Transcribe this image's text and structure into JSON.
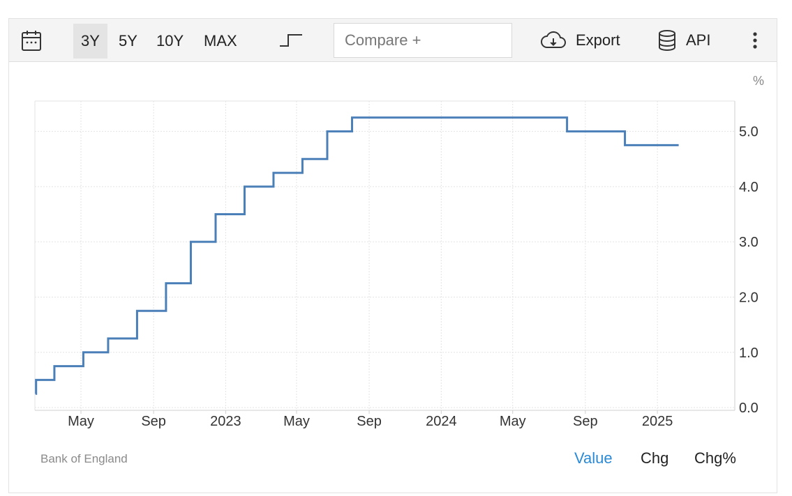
{
  "toolbar": {
    "calendar_icon": "calendar-icon",
    "ranges": [
      {
        "label": "3Y",
        "active": true
      },
      {
        "label": "5Y",
        "active": false
      },
      {
        "label": "10Y",
        "active": false
      },
      {
        "label": "MAX",
        "active": false
      }
    ],
    "chart_type_icon": "step-line-icon",
    "compare_placeholder": "Compare +",
    "export_label": "Export",
    "export_icon": "cloud-download-icon",
    "api_label": "API",
    "api_icon": "database-icon",
    "more_icon": "kebab-menu-icon"
  },
  "footer": {
    "source": "Bank of England",
    "tabs": [
      {
        "label": "Value",
        "active": true
      },
      {
        "label": "Chg",
        "active": false
      },
      {
        "label": "Chg%",
        "active": false
      }
    ]
  },
  "colors": {
    "line": "#4a7fb8",
    "grid": "#e3e3e3",
    "axis": "#cfcfcf",
    "tab_active": "#2b8ad6"
  },
  "chart_data": {
    "type": "line",
    "step": true,
    "ylabel": "%",
    "ylim": [
      -0.05,
      5.55
    ],
    "xlim": [
      "2022-02-12",
      "2025-05-12"
    ],
    "y_ticks": [
      "0.0",
      "1.0",
      "2.0",
      "3.0",
      "4.0",
      "5.0"
    ],
    "x_ticks": [
      {
        "date": "2022-05-01",
        "label": "May"
      },
      {
        "date": "2022-09-01",
        "label": "Sep"
      },
      {
        "date": "2023-01-01",
        "label": "2023"
      },
      {
        "date": "2023-05-01",
        "label": "May"
      },
      {
        "date": "2023-09-01",
        "label": "Sep"
      },
      {
        "date": "2024-01-01",
        "label": "2024"
      },
      {
        "date": "2024-05-01",
        "label": "May"
      },
      {
        "date": "2024-09-01",
        "label": "Sep"
      },
      {
        "date": "2025-01-01",
        "label": "2025"
      }
    ],
    "grid": true,
    "series": [
      {
        "x": [
          "2022-02-13",
          "2022-02-14",
          "2022-03-17",
          "2022-05-05",
          "2022-06-16",
          "2022-08-04",
          "2022-09-22",
          "2022-11-03",
          "2022-12-15",
          "2023-02-02",
          "2023-03-23",
          "2023-05-11",
          "2023-06-22",
          "2023-08-03",
          "2024-08-01",
          "2024-11-07",
          "2025-02-06"
        ],
        "y": [
          0.25,
          0.5,
          0.75,
          1.0,
          1.25,
          1.75,
          2.25,
          3.0,
          3.5,
          4.0,
          4.25,
          4.5,
          5.0,
          5.25,
          5.0,
          4.75,
          4.75
        ]
      }
    ]
  }
}
